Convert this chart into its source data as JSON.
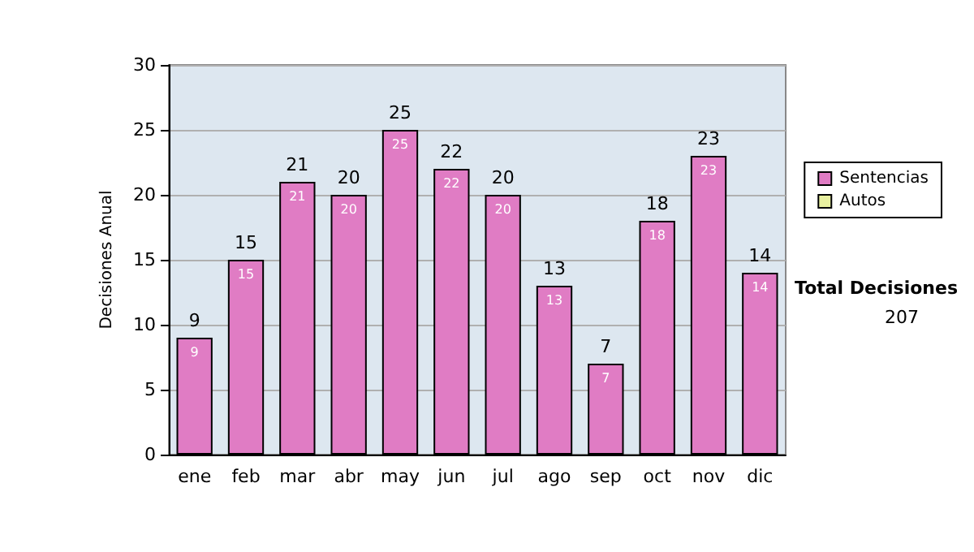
{
  "chart_data": {
    "type": "bar",
    "ylabel": "Decisiones Anual",
    "categories": [
      "ene",
      "feb",
      "mar",
      "abr",
      "may",
      "jun",
      "jul",
      "ago",
      "sep",
      "oct",
      "nov",
      "dic"
    ],
    "series": [
      {
        "name": "Sentencias",
        "color": "#e07cc4",
        "values": [
          9,
          15,
          21,
          20,
          25,
          22,
          20,
          13,
          7,
          18,
          23,
          14
        ],
        "value_labels": [
          "9",
          "15",
          "21",
          "20",
          "25",
          "22",
          "20",
          "13",
          "7",
          "18",
          "23",
          "14"
        ]
      },
      {
        "name": "Autos",
        "color": "#e8f0a0",
        "values": [
          0,
          0,
          0,
          0,
          0,
          0,
          0,
          0,
          0,
          0,
          0,
          0
        ]
      }
    ],
    "stacked": true,
    "totals": [
      "9",
      "15",
      "21",
      "20",
      "25",
      "22",
      "20",
      "13",
      "7",
      "18",
      "23",
      "14"
    ],
    "ylim": [
      0,
      30
    ],
    "yticks": [
      0,
      5,
      10,
      15,
      20,
      25,
      30
    ],
    "grid": "y",
    "legend": "right",
    "annotations": [
      "Total Decisiones",
      "207"
    ]
  }
}
